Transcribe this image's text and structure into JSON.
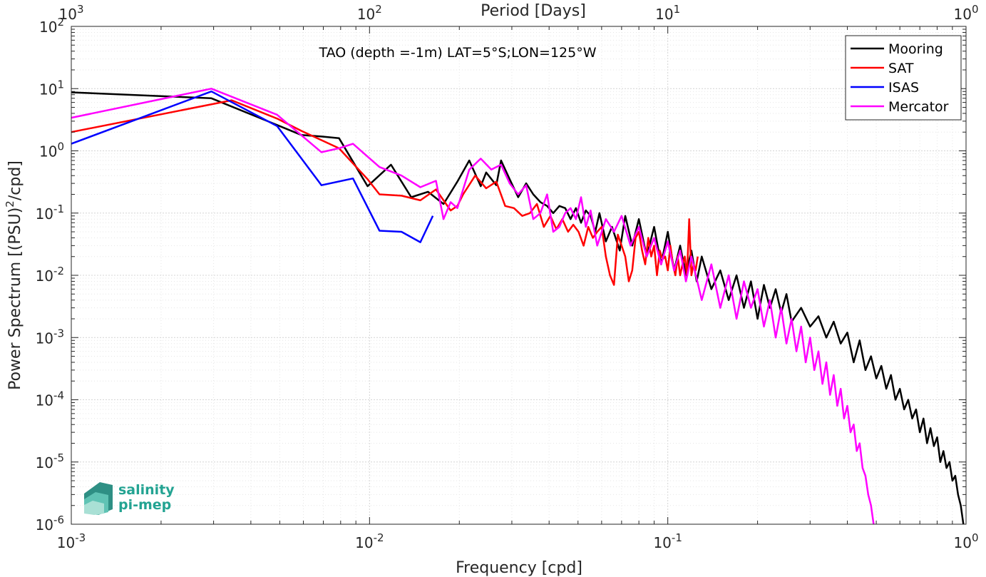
{
  "chart_data": {
    "type": "line",
    "title": "TAO (depth =-1m) LAT=5°S;LON=125°W",
    "xlabel": "Frequency [cpd]",
    "ylabel": "Power Spectrum [(PSU)",
    "ylabel_sup": "2",
    "ylabel_tail": "/cpd]",
    "x2label": "Period [Days]",
    "x_scale": "log",
    "y_scale": "log",
    "xlim": [
      0.001,
      1
    ],
    "ylim": [
      1e-06,
      100
    ],
    "grid": true,
    "legend_position": "top-right",
    "x_ticks": [
      {
        "value": 0.001,
        "base": "10",
        "exp": "-3"
      },
      {
        "value": 0.01,
        "base": "10",
        "exp": "-2"
      },
      {
        "value": 0.1,
        "base": "10",
        "exp": "-1"
      },
      {
        "value": 1,
        "base": "10",
        "exp": "0"
      }
    ],
    "y_ticks": [
      {
        "value": 1e-06,
        "base": "10",
        "exp": "-6"
      },
      {
        "value": 1e-05,
        "base": "10",
        "exp": "-5"
      },
      {
        "value": 0.0001,
        "base": "10",
        "exp": "-4"
      },
      {
        "value": 0.001,
        "base": "10",
        "exp": "-3"
      },
      {
        "value": 0.01,
        "base": "10",
        "exp": "-2"
      },
      {
        "value": 0.1,
        "base": "10",
        "exp": "-1"
      },
      {
        "value": 1,
        "base": "10",
        "exp": "0"
      },
      {
        "value": 10,
        "base": "10",
        "exp": "1"
      },
      {
        "value": 100,
        "base": "10",
        "exp": "2"
      }
    ],
    "x2_ticks": [
      {
        "value": 0.001,
        "base": "10",
        "exp": "3"
      },
      {
        "value": 0.01,
        "base": "10",
        "exp": "2"
      },
      {
        "value": 0.1,
        "base": "10",
        "exp": "1"
      },
      {
        "value": 1,
        "base": "10",
        "exp": "0"
      }
    ],
    "series": [
      {
        "name": "Mooring",
        "color": "#000000",
        "x": [
          0.001,
          0.00295,
          0.0049,
          0.0059,
          0.0069,
          0.0079,
          0.00985,
          0.0118,
          0.0138,
          0.0157,
          0.0177,
          0.0197,
          0.0216,
          0.0236,
          0.0246,
          0.0266,
          0.0276,
          0.0295,
          0.0315,
          0.0335,
          0.0354,
          0.0374,
          0.0394,
          0.0413,
          0.0433,
          0.0453,
          0.0472,
          0.0492,
          0.0512,
          0.0531,
          0.0551,
          0.0571,
          0.059,
          0.062,
          0.065,
          0.069,
          0.072,
          0.076,
          0.08,
          0.085,
          0.09,
          0.095,
          0.1,
          0.105,
          0.11,
          0.115,
          0.12,
          0.125,
          0.13,
          0.14,
          0.15,
          0.16,
          0.17,
          0.18,
          0.19,
          0.2,
          0.21,
          0.22,
          0.23,
          0.24,
          0.25,
          0.26,
          0.28,
          0.3,
          0.32,
          0.34,
          0.36,
          0.38,
          0.4,
          0.42,
          0.44,
          0.46,
          0.48,
          0.5,
          0.52,
          0.54,
          0.56,
          0.58,
          0.6,
          0.62,
          0.64,
          0.66,
          0.68,
          0.7,
          0.72,
          0.74,
          0.76,
          0.78,
          0.8,
          0.82,
          0.84,
          0.86,
          0.88,
          0.9,
          0.92,
          0.94,
          0.96,
          0.98
        ],
        "y": [
          8.7,
          7.0,
          2.6,
          1.8,
          1.7,
          1.6,
          0.27,
          0.6,
          0.18,
          0.22,
          0.14,
          0.32,
          0.7,
          0.27,
          0.45,
          0.28,
          0.7,
          0.35,
          0.18,
          0.3,
          0.2,
          0.15,
          0.13,
          0.1,
          0.13,
          0.12,
          0.08,
          0.12,
          0.07,
          0.11,
          0.09,
          0.05,
          0.1,
          0.035,
          0.06,
          0.025,
          0.09,
          0.03,
          0.08,
          0.02,
          0.06,
          0.015,
          0.05,
          0.012,
          0.03,
          0.01,
          0.025,
          0.008,
          0.02,
          0.006,
          0.012,
          0.004,
          0.01,
          0.003,
          0.008,
          0.002,
          0.007,
          0.003,
          0.006,
          0.0025,
          0.005,
          0.0018,
          0.003,
          0.0015,
          0.0022,
          0.001,
          0.0018,
          0.0008,
          0.0012,
          0.0004,
          0.0009,
          0.0003,
          0.0005,
          0.00022,
          0.00035,
          0.00015,
          0.00025,
          0.0001,
          0.00015,
          7e-05,
          0.0001,
          5e-05,
          7e-05,
          3e-05,
          5e-05,
          2e-05,
          3.5e-05,
          1.8e-05,
          2.5e-05,
          1e-05,
          1.5e-05,
          8e-06,
          1e-05,
          5e-06,
          6e-06,
          3e-06,
          2e-06,
          1e-06
        ]
      },
      {
        "name": "SAT",
        "color": "#ff0000",
        "x": [
          0.001,
          0.00345,
          0.0049,
          0.0059,
          0.0079,
          0.00985,
          0.0108,
          0.0128,
          0.0148,
          0.0167,
          0.0187,
          0.0197,
          0.0206,
          0.0226,
          0.0246,
          0.0266,
          0.0285,
          0.0305,
          0.0325,
          0.0345,
          0.0364,
          0.0384,
          0.0404,
          0.0423,
          0.0443,
          0.0463,
          0.0482,
          0.0502,
          0.0522,
          0.0541,
          0.0561,
          0.058,
          0.06,
          0.062,
          0.064,
          0.066,
          0.068,
          0.07,
          0.072,
          0.074,
          0.076,
          0.078,
          0.08,
          0.082,
          0.084,
          0.086,
          0.088,
          0.09,
          0.092,
          0.094,
          0.096,
          0.098,
          0.1,
          0.102,
          0.104,
          0.106,
          0.108,
          0.11,
          0.112,
          0.114,
          0.116,
          0.118,
          0.12,
          0.122,
          0.124,
          0.126
        ],
        "y": [
          2.0,
          6.5,
          3.3,
          2.1,
          1.1,
          0.35,
          0.2,
          0.19,
          0.16,
          0.24,
          0.11,
          0.13,
          0.2,
          0.4,
          0.25,
          0.32,
          0.13,
          0.12,
          0.09,
          0.1,
          0.14,
          0.06,
          0.09,
          0.055,
          0.08,
          0.05,
          0.065,
          0.05,
          0.03,
          0.06,
          0.04,
          0.05,
          0.06,
          0.02,
          0.01,
          0.007,
          0.045,
          0.03,
          0.02,
          0.008,
          0.012,
          0.04,
          0.05,
          0.025,
          0.015,
          0.04,
          0.02,
          0.03,
          0.01,
          0.025,
          0.018,
          0.02,
          0.012,
          0.03,
          0.015,
          0.01,
          0.02,
          0.01,
          0.015,
          0.02,
          0.01,
          0.08,
          0.01,
          0.015,
          0.012,
          0.02
        ]
      },
      {
        "name": "ISAS",
        "color": "#0000ff",
        "x": [
          0.001,
          0.00295,
          0.0049,
          0.0069,
          0.0088,
          0.0108,
          0.0128,
          0.0148,
          0.0163
        ],
        "y": [
          1.3,
          9.0,
          2.5,
          0.28,
          0.36,
          0.052,
          0.05,
          0.034,
          0.09
        ]
      },
      {
        "name": "Mercator",
        "color": "#ff00ff",
        "x": [
          0.001,
          0.00295,
          0.0049,
          0.0069,
          0.0079,
          0.0088,
          0.0108,
          0.0128,
          0.0148,
          0.0167,
          0.0177,
          0.0187,
          0.0197,
          0.0216,
          0.0236,
          0.0256,
          0.0276,
          0.0295,
          0.0315,
          0.0335,
          0.0354,
          0.0374,
          0.0394,
          0.0413,
          0.0433,
          0.0453,
          0.0472,
          0.0492,
          0.0512,
          0.0531,
          0.0551,
          0.058,
          0.062,
          0.066,
          0.07,
          0.075,
          0.08,
          0.085,
          0.09,
          0.095,
          0.1,
          0.105,
          0.11,
          0.115,
          0.12,
          0.13,
          0.14,
          0.15,
          0.16,
          0.17,
          0.18,
          0.19,
          0.2,
          0.21,
          0.22,
          0.23,
          0.24,
          0.25,
          0.26,
          0.27,
          0.28,
          0.29,
          0.3,
          0.31,
          0.32,
          0.33,
          0.34,
          0.35,
          0.36,
          0.37,
          0.38,
          0.39,
          0.4,
          0.41,
          0.42,
          0.43,
          0.44,
          0.45,
          0.46,
          0.47,
          0.48,
          0.49
        ],
        "y": [
          3.4,
          10.0,
          3.8,
          0.95,
          1.1,
          1.3,
          0.55,
          0.4,
          0.26,
          0.33,
          0.08,
          0.15,
          0.12,
          0.5,
          0.75,
          0.5,
          0.6,
          0.3,
          0.2,
          0.28,
          0.08,
          0.1,
          0.2,
          0.05,
          0.06,
          0.1,
          0.12,
          0.08,
          0.18,
          0.06,
          0.11,
          0.03,
          0.08,
          0.05,
          0.09,
          0.03,
          0.06,
          0.02,
          0.04,
          0.015,
          0.035,
          0.012,
          0.025,
          0.008,
          0.02,
          0.004,
          0.015,
          0.003,
          0.01,
          0.002,
          0.008,
          0.003,
          0.006,
          0.0015,
          0.004,
          0.001,
          0.003,
          0.0008,
          0.002,
          0.0006,
          0.0015,
          0.0004,
          0.001,
          0.0003,
          0.0006,
          0.00018,
          0.0004,
          0.00012,
          0.00025,
          8e-05,
          0.00015,
          5e-05,
          8e-05,
          3e-05,
          4e-05,
          1.5e-05,
          2e-05,
          8e-06,
          6e-06,
          3e-06,
          2e-06,
          1e-06
        ]
      }
    ]
  },
  "logo": {
    "line1": "salinity",
    "line2": "pi-mep",
    "color": "#23a392"
  }
}
